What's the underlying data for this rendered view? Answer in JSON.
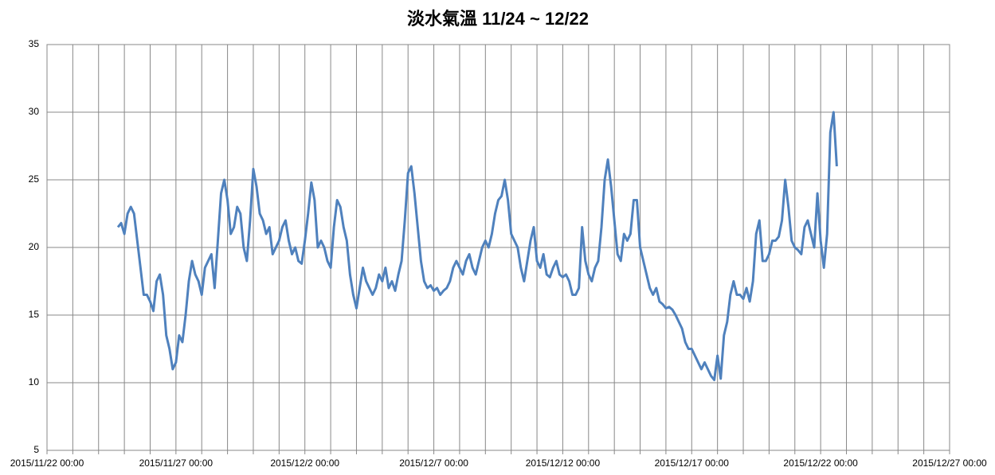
{
  "chart_data": {
    "type": "line",
    "title": "淡水氣溫 11/24 ~ 12/22",
    "x": [
      "2015/11/24 18:00",
      "2015/11/24 21:00",
      "2015/11/25 00:00",
      "2015/11/25 03:00",
      "2015/11/25 06:00",
      "2015/11/25 09:00",
      "2015/11/25 12:00",
      "2015/11/25 15:00",
      "2015/11/25 18:00",
      "2015/11/25 21:00",
      "2015/11/26 00:00",
      "2015/11/26 03:00",
      "2015/11/26 06:00",
      "2015/11/26 09:00",
      "2015/11/26 12:00",
      "2015/11/26 15:00",
      "2015/11/26 18:00",
      "2015/11/26 21:00",
      "2015/11/27 00:00",
      "2015/11/27 03:00",
      "2015/11/27 06:00",
      "2015/11/27 09:00",
      "2015/11/27 12:00",
      "2015/11/27 15:00",
      "2015/11/27 18:00",
      "2015/11/27 21:00",
      "2015/11/28 00:00",
      "2015/11/28 03:00",
      "2015/11/28 06:00",
      "2015/11/28 09:00",
      "2015/11/28 12:00",
      "2015/11/28 15:00",
      "2015/11/28 18:00",
      "2015/11/28 21:00",
      "2015/11/29 00:00",
      "2015/11/29 03:00",
      "2015/11/29 06:00",
      "2015/11/29 09:00",
      "2015/11/29 12:00",
      "2015/11/29 15:00",
      "2015/11/29 18:00",
      "2015/11/29 21:00",
      "2015/11/30 00:00",
      "2015/11/30 03:00",
      "2015/11/30 06:00",
      "2015/11/30 09:00",
      "2015/11/30 12:00",
      "2015/11/30 15:00",
      "2015/11/30 18:00",
      "2015/11/30 21:00",
      "2015/12/1 00:00",
      "2015/12/1 03:00",
      "2015/12/1 06:00",
      "2015/12/1 09:00",
      "2015/12/1 12:00",
      "2015/12/1 15:00",
      "2015/12/1 18:00",
      "2015/12/1 21:00",
      "2015/12/2 00:00",
      "2015/12/2 03:00",
      "2015/12/2 06:00",
      "2015/12/2 09:00",
      "2015/12/2 12:00",
      "2015/12/2 15:00",
      "2015/12/2 18:00",
      "2015/12/2 21:00",
      "2015/12/3 00:00",
      "2015/12/3 03:00",
      "2015/12/3 06:00",
      "2015/12/3 09:00",
      "2015/12/3 12:00",
      "2015/12/3 15:00",
      "2015/12/3 18:00",
      "2015/12/3 21:00",
      "2015/12/4 00:00",
      "2015/12/4 03:00",
      "2015/12/4 06:00",
      "2015/12/4 09:00",
      "2015/12/4 12:00",
      "2015/12/4 15:00",
      "2015/12/4 18:00",
      "2015/12/4 21:00",
      "2015/12/5 00:00",
      "2015/12/5 03:00",
      "2015/12/5 06:00",
      "2015/12/5 09:00",
      "2015/12/5 12:00",
      "2015/12/5 15:00",
      "2015/12/5 18:00",
      "2015/12/5 21:00",
      "2015/12/6 00:00",
      "2015/12/6 03:00",
      "2015/12/6 06:00",
      "2015/12/6 09:00",
      "2015/12/6 12:00",
      "2015/12/6 15:00",
      "2015/12/6 18:00",
      "2015/12/6 21:00",
      "2015/12/7 00:00",
      "2015/12/7 03:00",
      "2015/12/7 06:00",
      "2015/12/7 09:00",
      "2015/12/7 12:00",
      "2015/12/7 15:00",
      "2015/12/7 18:00",
      "2015/12/7 21:00",
      "2015/12/8 00:00",
      "2015/12/8 03:00",
      "2015/12/8 06:00",
      "2015/12/8 09:00",
      "2015/12/8 12:00",
      "2015/12/8 15:00",
      "2015/12/8 18:00",
      "2015/12/8 21:00",
      "2015/12/9 00:00",
      "2015/12/9 03:00",
      "2015/12/9 06:00",
      "2015/12/9 09:00",
      "2015/12/9 12:00",
      "2015/12/9 15:00",
      "2015/12/9 18:00",
      "2015/12/9 21:00",
      "2015/12/10 00:00",
      "2015/12/10 03:00",
      "2015/12/10 06:00",
      "2015/12/10 09:00",
      "2015/12/10 12:00",
      "2015/12/10 15:00",
      "2015/12/10 18:00",
      "2015/12/10 21:00",
      "2015/12/11 00:00",
      "2015/12/11 03:00",
      "2015/12/11 06:00",
      "2015/12/11 09:00",
      "2015/12/11 12:00",
      "2015/12/11 15:00",
      "2015/12/11 18:00",
      "2015/12/11 21:00",
      "2015/12/12 00:00",
      "2015/12/12 03:00",
      "2015/12/12 06:00",
      "2015/12/12 09:00",
      "2015/12/12 12:00",
      "2015/12/12 15:00",
      "2015/12/12 18:00",
      "2015/12/12 21:00",
      "2015/12/13 00:00",
      "2015/12/13 03:00",
      "2015/12/13 06:00",
      "2015/12/13 09:00",
      "2015/12/13 12:00",
      "2015/12/13 15:00",
      "2015/12/13 18:00",
      "2015/12/13 21:00",
      "2015/12/14 00:00",
      "2015/12/14 03:00",
      "2015/12/14 06:00",
      "2015/12/14 09:00",
      "2015/12/14 12:00",
      "2015/12/14 15:00",
      "2015/12/14 18:00",
      "2015/12/14 21:00",
      "2015/12/15 00:00",
      "2015/12/15 03:00",
      "2015/12/15 06:00",
      "2015/12/15 09:00",
      "2015/12/15 12:00",
      "2015/12/15 15:00",
      "2015/12/15 18:00",
      "2015/12/15 21:00",
      "2015/12/16 00:00",
      "2015/12/16 03:00",
      "2015/12/16 06:00",
      "2015/12/16 09:00",
      "2015/12/16 12:00",
      "2015/12/16 15:00",
      "2015/12/16 18:00",
      "2015/12/16 21:00",
      "2015/12/17 00:00",
      "2015/12/17 03:00",
      "2015/12/17 06:00",
      "2015/12/17 09:00",
      "2015/12/17 12:00",
      "2015/12/17 15:00",
      "2015/12/17 18:00",
      "2015/12/17 21:00",
      "2015/12/18 00:00",
      "2015/12/18 03:00",
      "2015/12/18 06:00",
      "2015/12/18 09:00",
      "2015/12/18 12:00",
      "2015/12/18 15:00",
      "2015/12/18 18:00",
      "2015/12/18 21:00",
      "2015/12/19 00:00",
      "2015/12/19 03:00",
      "2015/12/19 06:00",
      "2015/12/19 09:00",
      "2015/12/19 12:00",
      "2015/12/19 15:00",
      "2015/12/19 18:00",
      "2015/12/19 21:00",
      "2015/12/20 00:00",
      "2015/12/20 03:00",
      "2015/12/20 06:00",
      "2015/12/20 09:00",
      "2015/12/20 12:00",
      "2015/12/20 15:00",
      "2015/12/20 18:00",
      "2015/12/20 21:00",
      "2015/12/21 00:00",
      "2015/12/21 03:00",
      "2015/12/21 06:00",
      "2015/12/21 09:00",
      "2015/12/21 12:00",
      "2015/12/21 15:00",
      "2015/12/21 18:00",
      "2015/12/21 21:00",
      "2015/12/22 00:00",
      "2015/12/22 03:00",
      "2015/12/22 06:00",
      "2015/12/22 09:00",
      "2015/12/22 12:00",
      "2015/12/22 15:00"
    ],
    "series": [
      {
        "name": "淡水氣溫",
        "color": "#4f81bd",
        "values": [
          21.5,
          21.8,
          21.0,
          22.5,
          23.0,
          22.5,
          20.5,
          18.5,
          16.5,
          16.5,
          16.0,
          15.3,
          17.5,
          18.0,
          16.5,
          13.5,
          12.5,
          11.0,
          11.5,
          13.5,
          13.0,
          15.0,
          17.5,
          19.0,
          18.0,
          17.5,
          16.5,
          18.5,
          19.0,
          19.5,
          17.0,
          20.5,
          24.0,
          25.0,
          23.5,
          21.0,
          21.5,
          23.0,
          22.5,
          20.0,
          19.0,
          22.0,
          25.8,
          24.5,
          22.5,
          22.0,
          21.0,
          21.5,
          19.5,
          20.0,
          20.5,
          21.5,
          22.0,
          20.5,
          19.5,
          20.0,
          19.0,
          18.8,
          20.5,
          22.5,
          24.8,
          23.5,
          20.0,
          20.5,
          20.0,
          19.0,
          18.5,
          21.5,
          23.5,
          23.0,
          21.5,
          20.5,
          18.0,
          16.5,
          15.5,
          17.0,
          18.5,
          17.5,
          17.0,
          16.5,
          17.0,
          18.0,
          17.5,
          18.5,
          17.0,
          17.5,
          16.8,
          18.0,
          19.0,
          22.0,
          25.5,
          26.0,
          24.0,
          21.5,
          19.0,
          17.5,
          17.0,
          17.2,
          16.8,
          17.0,
          16.5,
          16.8,
          17.0,
          17.5,
          18.5,
          19.0,
          18.5,
          18.0,
          19.0,
          19.5,
          18.5,
          18.0,
          19.0,
          20.0,
          20.5,
          20.0,
          21.0,
          22.5,
          23.5,
          23.8,
          25.0,
          23.5,
          21.0,
          20.5,
          20.0,
          18.5,
          17.5,
          19.0,
          20.5,
          21.5,
          19.0,
          18.5,
          19.5,
          18.0,
          17.8,
          18.5,
          19.0,
          18.0,
          17.8,
          18.0,
          17.5,
          16.5,
          16.5,
          17.0,
          21.5,
          19.0,
          18.0,
          17.5,
          18.5,
          19.0,
          21.5,
          25.0,
          26.5,
          24.5,
          22.0,
          19.5,
          19.0,
          21.0,
          20.5,
          21.0,
          23.5,
          23.5,
          20.0,
          19.0,
          18.0,
          17.0,
          16.5,
          17.0,
          16.0,
          15.8,
          15.5,
          15.6,
          15.4,
          15.0,
          14.5,
          14.0,
          13.0,
          12.5,
          12.5,
          12.0,
          11.5,
          11.0,
          11.5,
          11.0,
          10.5,
          10.2,
          12.0,
          10.3,
          13.5,
          14.5,
          16.5,
          17.5,
          16.5,
          16.5,
          16.2,
          17.0,
          16.0,
          17.5,
          21.0,
          22.0,
          19.0,
          19.0,
          19.5,
          20.5,
          20.5,
          20.8,
          22.0,
          25.0,
          23.0,
          20.5,
          20.0,
          19.8,
          19.5,
          21.5,
          22.0,
          21.0,
          20.0,
          24.0,
          20.5,
          18.5,
          21.0,
          28.5,
          30.0,
          26.0
        ]
      }
    ],
    "xlim": [
      "2015/11/22 00:00",
      "2015/12/27 00:00"
    ],
    "xticks": [
      "2015/11/22 00:00",
      "2015/11/27 00:00",
      "2015/12/2 00:00",
      "2015/12/7 00:00",
      "2015/12/12 00:00",
      "2015/12/17 00:00",
      "2015/12/22 00:00",
      "2015/12/27 00:00"
    ],
    "xminor_ticks": [
      "2015/11/23 00:00",
      "2015/11/24 00:00",
      "2015/11/25 00:00",
      "2015/11/26 00:00",
      "2015/11/28 00:00",
      "2015/11/29 00:00",
      "2015/11/30 00:00",
      "2015/12/1 00:00",
      "2015/12/3 00:00",
      "2015/12/4 00:00",
      "2015/12/5 00:00",
      "2015/12/6 00:00",
      "2015/12/8 00:00",
      "2015/12/9 00:00",
      "2015/12/10 00:00",
      "2015/12/11 00:00",
      "2015/12/13 00:00",
      "2015/12/14 00:00",
      "2015/12/15 00:00",
      "2015/12/16 00:00",
      "2015/12/18 00:00",
      "2015/12/19 00:00",
      "2015/12/20 00:00",
      "2015/12/21 00:00",
      "2015/12/23 00:00",
      "2015/12/24 00:00",
      "2015/12/25 00:00",
      "2015/12/26 00:00"
    ],
    "ylim": [
      5,
      35
    ],
    "yticks": [
      5,
      10,
      15,
      20,
      25,
      30,
      35
    ],
    "grid": true
  }
}
